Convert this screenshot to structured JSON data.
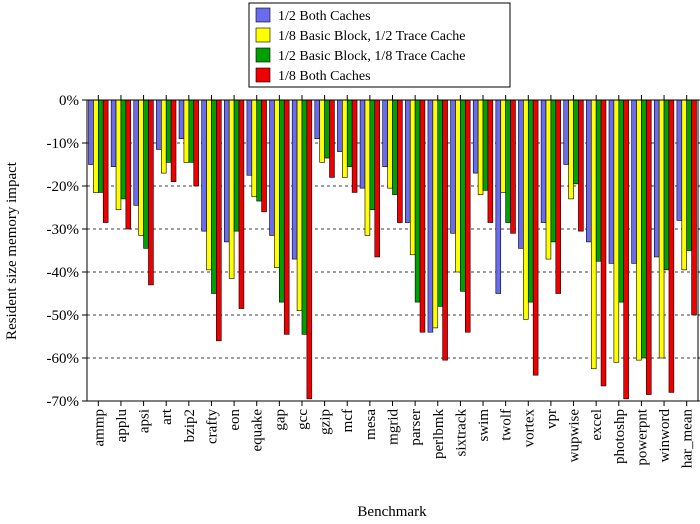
{
  "chart_data": {
    "type": "bar",
    "title": "",
    "xlabel": "Benchmark",
    "ylabel": "Resident size memory impact",
    "ylim": [
      -70,
      0
    ],
    "yticks": [
      0,
      -10,
      -20,
      -30,
      -40,
      -50,
      -60,
      -70
    ],
    "ytick_labels": [
      "0%",
      "-10%",
      "-20%",
      "-30%",
      "-40%",
      "-50%",
      "-60%",
      "-70%"
    ],
    "grid": "horizontal dashed",
    "legend_position": "top-center",
    "categories": [
      "ammp",
      "applu",
      "apsi",
      "art",
      "bzip2",
      "crafty",
      "eon",
      "equake",
      "gap",
      "gcc",
      "gzip",
      "mcf",
      "mesa",
      "mgrid",
      "parser",
      "perlbmk",
      "sixtrack",
      "swim",
      "twolf",
      "vortex",
      "vpr",
      "wupwise",
      "excel",
      "photoshp",
      "powerpnt",
      "winword",
      "har_mean"
    ],
    "series": [
      {
        "name": "1/2 Both Caches",
        "color": "#6b6bf0",
        "values": [
          -15,
          -15.5,
          -24.5,
          -11.5,
          -9,
          -30.5,
          -33,
          -17.5,
          -31.5,
          -37,
          -9,
          -12,
          -20.5,
          -15.5,
          -28.5,
          -54,
          -31,
          -17,
          -45,
          -34.5,
          -28.5,
          -15,
          -33,
          -38,
          -38,
          -36.5,
          -28
        ]
      },
      {
        "name": "1/8 Basic Block, 1/2 Trace Cache",
        "color": "#ffff00",
        "values": [
          -21.5,
          -25.5,
          -31.5,
          -17,
          -14.5,
          -39.5,
          -41.5,
          -22.5,
          -39,
          -49,
          -14.5,
          -18,
          -31.5,
          -20.5,
          -36,
          -53,
          -40,
          -22,
          -21.5,
          -51,
          -37,
          -23,
          -62.5,
          -61,
          -60.5,
          -60,
          -39.5
        ]
      },
      {
        "name": "1/2 Basic Block, 1/8 Trace Cache",
        "color": "#00a000",
        "values": [
          -21.5,
          -23,
          -34.5,
          -14.5,
          -14.5,
          -45,
          -30.5,
          -23.5,
          -47,
          -54.5,
          -13.5,
          -15.5,
          -25.5,
          -22,
          -47,
          -48,
          -44.5,
          -21,
          -28.5,
          -47,
          -33,
          -19.5,
          -37.5,
          -47,
          -60,
          -39.5,
          -35
        ]
      },
      {
        "name": "1/8 Both Caches",
        "color": "#ee0000",
        "values": [
          -28.5,
          -30,
          -43,
          -19,
          -20,
          -56,
          -48.5,
          -26,
          -54.5,
          -69.5,
          -18,
          -21.5,
          -36.5,
          -28.5,
          -54,
          -60.5,
          -54,
          -28.5,
          -31,
          -64,
          -45,
          -30.5,
          -66.5,
          -69.5,
          -68.5,
          -68,
          -50
        ]
      }
    ]
  }
}
